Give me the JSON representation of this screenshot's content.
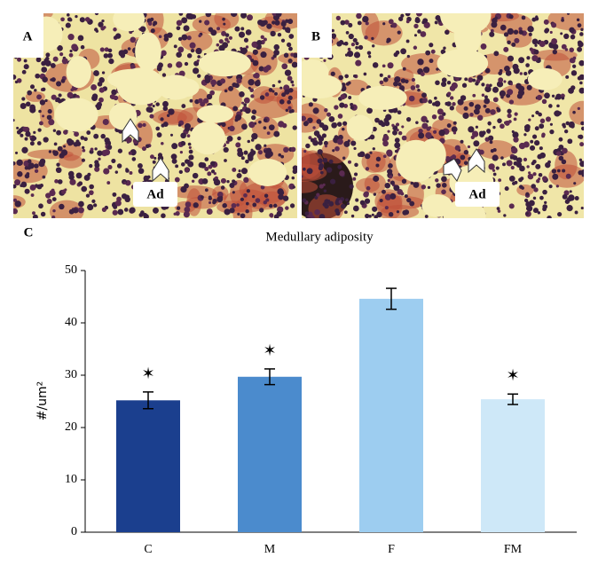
{
  "panels": [
    {
      "label": "A",
      "annotation": "Ad"
    },
    {
      "label": "B",
      "annotation": "Ad"
    }
  ],
  "chart_data": {
    "type": "bar",
    "panel_label": "C",
    "title": "Medullary adiposity",
    "y_label": "#/um²",
    "categories": [
      "C",
      "M",
      "F",
      "FM"
    ],
    "values": [
      25.2,
      29.7,
      44.6,
      25.4
    ],
    "errors": [
      1.6,
      1.5,
      2.0,
      1.0
    ],
    "markers": [
      "✶",
      "✶",
      null,
      "✶"
    ],
    "colors": [
      "#1b3f8e",
      "#4b8bcd",
      "#9dcdf0",
      "#cee8f8"
    ],
    "ylim": [
      0,
      50
    ],
    "yticks": [
      0,
      10,
      20,
      30,
      40,
      50
    ]
  }
}
